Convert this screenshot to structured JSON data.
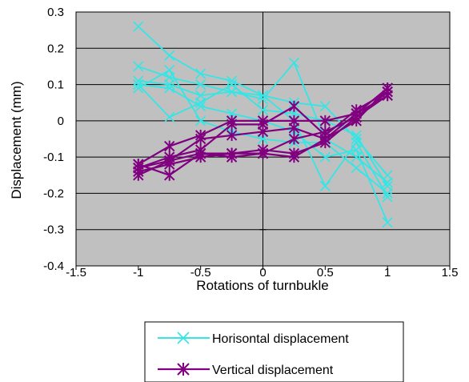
{
  "chart_data": {
    "type": "line",
    "title": "",
    "xlabel": "Rotations of turnbukle",
    "ylabel": "Displacement (mm)",
    "xlim": [
      -1.5,
      1.5
    ],
    "ylim": [
      -0.4,
      0.3
    ],
    "xticks": [
      -1.5,
      -1,
      -0.5,
      0,
      0.5,
      1,
      1.5
    ],
    "yticks": [
      -0.4,
      -0.3,
      -0.2,
      -0.1,
      0,
      0.1,
      0.2,
      0.3
    ],
    "xtick_labels": [
      "-1.5",
      "-1",
      "-0.5",
      "0",
      "0.5",
      "1",
      "1.5"
    ],
    "ytick_labels": [
      "-0.4",
      "-0.3",
      "-0.2",
      "-0.1",
      "0",
      "0.1",
      "0.2",
      "0.3"
    ],
    "grid": "horizontal",
    "plot_background": "#c0c0c0",
    "legend_position": "bottom",
    "legend": [
      {
        "label": "Horisontal displacement",
        "color": "#33e6e6",
        "marker": "x"
      },
      {
        "label": "Vertical displacement",
        "color": "#800080",
        "marker": "asterisk"
      }
    ],
    "series": [
      {
        "group": 0,
        "color": "#33e6e6",
        "x": [
          -1,
          -0.75,
          -0.5,
          -0.25,
          0,
          0.25,
          0.5,
          0.75,
          1
        ],
        "y": [
          0.26,
          0.18,
          0.13,
          0.11,
          0.07,
          0.05,
          0.04,
          -0.05,
          -0.15
        ]
      },
      {
        "group": 0,
        "color": "#33e6e6",
        "x": [
          -1,
          -0.75,
          -0.5,
          -0.25,
          0,
          0.25,
          0.5,
          0.75,
          1
        ],
        "y": [
          0.15,
          0.12,
          0.1,
          0.08,
          0.06,
          0.16,
          -0.05,
          -0.1,
          -0.17
        ]
      },
      {
        "group": 0,
        "color": "#33e6e6",
        "x": [
          -1,
          -0.75,
          -0.5,
          -0.25,
          0,
          0.25,
          0.5,
          0.75,
          1
        ],
        "y": [
          0.11,
          0.1,
          0.07,
          0.08,
          0.07,
          0.0,
          -0.18,
          -0.06,
          -0.21
        ]
      },
      {
        "group": 0,
        "color": "#33e6e6",
        "x": [
          -1,
          -0.75,
          -0.5,
          -0.25,
          0,
          0.25,
          0.5,
          0.75,
          1
        ],
        "y": [
          0.1,
          0.09,
          0.04,
          0.02,
          0.0,
          -0.03,
          -0.1,
          -0.08,
          -0.28
        ]
      },
      {
        "group": 0,
        "color": "#33e6e6",
        "x": [
          -1,
          -0.75,
          -0.5,
          -0.25,
          0,
          0.25,
          0.5,
          0.75,
          1
        ],
        "y": [
          0.09,
          0.14,
          0.0,
          -0.03,
          -0.05,
          -0.06,
          -0.06,
          -0.13,
          -0.2
        ]
      },
      {
        "group": 0,
        "color": "#33e6e6",
        "x": [
          -1,
          -0.75,
          -0.5,
          -0.25,
          0,
          0.25,
          0.5,
          0.75,
          1
        ],
        "y": [
          0.1,
          0.01,
          0.05,
          0.1,
          0.03,
          0.02,
          0.0,
          -0.04,
          -0.18
        ]
      },
      {
        "group": 1,
        "color": "#800080",
        "x": [
          -1,
          -0.75,
          -0.5,
          -0.25,
          0,
          0.25,
          0.5,
          0.75,
          1
        ],
        "y": [
          -0.12,
          -0.07,
          -0.04,
          0.0,
          0.0,
          0.0,
          0.0,
          0.02,
          0.09
        ]
      },
      {
        "group": 1,
        "color": "#800080",
        "x": [
          -1,
          -0.75,
          -0.5,
          -0.25,
          0,
          0.25,
          0.5,
          0.75,
          1
        ],
        "y": [
          -0.13,
          -0.1,
          -0.08,
          -0.01,
          -0.01,
          0.04,
          -0.04,
          0.03,
          0.08
        ]
      },
      {
        "group": 1,
        "color": "#800080",
        "x": [
          -1,
          -0.75,
          -0.5,
          -0.25,
          0,
          0.25,
          0.5,
          0.75,
          1
        ],
        "y": [
          -0.13,
          -0.11,
          -0.09,
          -0.09,
          -0.08,
          -0.09,
          -0.06,
          0.01,
          0.07
        ]
      },
      {
        "group": 1,
        "color": "#800080",
        "x": [
          -1,
          -0.75,
          -0.5,
          -0.25,
          0,
          0.25,
          0.5,
          0.75,
          1
        ],
        "y": [
          -0.14,
          -0.12,
          -0.1,
          -0.09,
          -0.09,
          -0.1,
          -0.05,
          0.0,
          0.09
        ]
      },
      {
        "group": 1,
        "color": "#800080",
        "x": [
          -1,
          -0.75,
          -0.5,
          -0.25,
          0,
          0.25,
          0.5,
          0.75,
          1
        ],
        "y": [
          -0.12,
          -0.15,
          -0.09,
          -0.1,
          -0.09,
          -0.05,
          -0.03,
          0.01,
          0.08
        ]
      },
      {
        "group": 1,
        "color": "#800080",
        "x": [
          -1,
          -0.75,
          -0.5,
          -0.25,
          0,
          0.25,
          0.5,
          0.75,
          1
        ],
        "y": [
          -0.15,
          -0.11,
          -0.05,
          -0.04,
          -0.03,
          -0.02,
          -0.05,
          0.02,
          0.07
        ]
      }
    ]
  }
}
